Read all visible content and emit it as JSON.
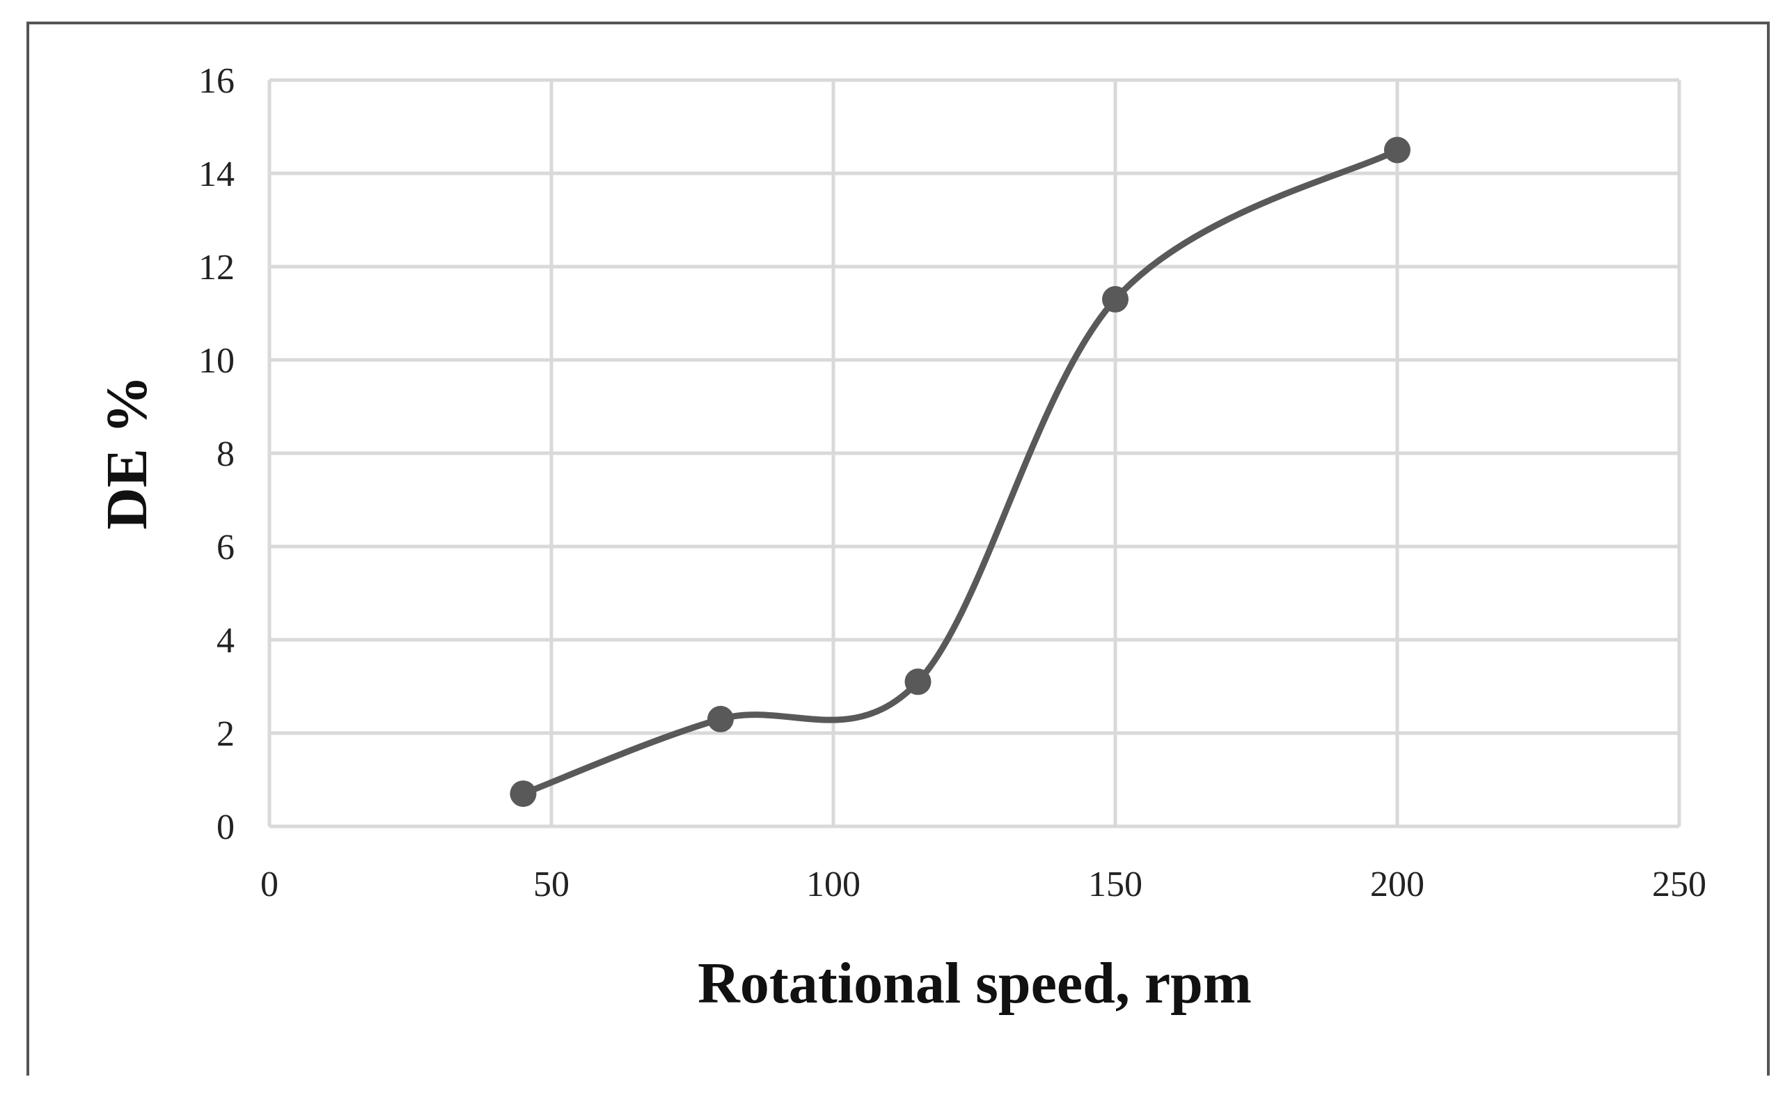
{
  "chart_data": {
    "type": "line",
    "smooth": true,
    "title": "",
    "xlabel": "Rotational speed, rpm",
    "ylabel": "DE %",
    "xlim": [
      0,
      250
    ],
    "ylim": [
      0,
      16
    ],
    "xticks": [
      0,
      50,
      100,
      150,
      200,
      250
    ],
    "yticks": [
      0,
      2,
      4,
      6,
      8,
      10,
      12,
      14,
      16
    ],
    "grid": true,
    "legend": "none",
    "series": [
      {
        "name": "DE %",
        "color": "#595959",
        "x": [
          45,
          80,
          115,
          150,
          200
        ],
        "y": [
          0.7,
          2.3,
          3.1,
          11.3,
          14.5
        ]
      }
    ]
  }
}
